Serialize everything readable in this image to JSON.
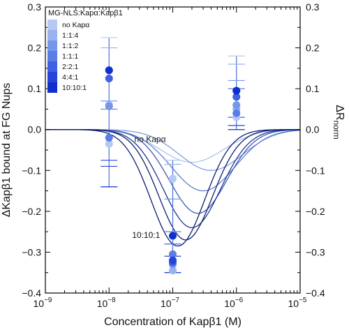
{
  "chart_data": {
    "type": "scatter",
    "title": "",
    "xlabel": "Concentration of Kapβ1 (M)",
    "ylabel_left": "ΔKapβ1 bound at FG Nups",
    "ylabel_right": "ΔR",
    "ylabel_right_sub": "norm",
    "xscale": "log",
    "xlim": [
      1e-09,
      1e-05
    ],
    "ylim": [
      -0.4,
      0.3
    ],
    "x_tick_exponents": [
      "−9",
      "−8",
      "−7",
      "−6",
      "−5"
    ],
    "x_tick_base": "10",
    "y_ticks": [
      "0.3",
      "0.2",
      "0.1",
      "0.0",
      "−0.1",
      "−0.2",
      "−0.3",
      "−0.4"
    ],
    "y_tick_values": [
      0.3,
      0.2,
      0.1,
      0.0,
      -0.1,
      -0.2,
      -0.3,
      -0.4
    ],
    "grid": false,
    "legend": {
      "title": "MG-NLS:Kapα:Kapβ1",
      "placement": "top-left",
      "entries": [
        "no  Kapα",
        "1:1:4",
        "1:1:2",
        "1:1:1",
        "2:2:1",
        "4:4:1",
        "10:10:1"
      ]
    },
    "colors": [
      "#b7c8f2",
      "#98b3ee",
      "#7497ea",
      "#5a7ee6",
      "#3d61e2",
      "#2645d8",
      "#1030cc"
    ],
    "curve_colors": [
      "#adc2ee",
      "#7e9edc",
      "#5d7fcc",
      "#3c5bb5",
      "#1f3590",
      "#0e1c6e"
    ],
    "annotations": [
      {
        "text": "no  Kapα",
        "x": 2.5e-08,
        "y": -0.03
      },
      {
        "text": "10:10:1",
        "x": 2.3e-08,
        "y": -0.265
      }
    ],
    "series": [
      {
        "name": "no  Kapα",
        "points": [
          {
            "x": 1e-08,
            "y": -0.035
          },
          {
            "x": 1e-07,
            "y": -0.12
          },
          {
            "x": 1e-06,
            "y": 0.03
          }
        ]
      },
      {
        "name": "1:1:4",
        "points": [
          {
            "x": 1e-08,
            "y": 0.06
          },
          {
            "x": 1e-07,
            "y": -0.345
          },
          {
            "x": 1e-06,
            "y": 0.05
          }
        ]
      },
      {
        "name": "1:1:2",
        "points": [
          {
            "x": 1e-08,
            "y": 0.057
          },
          {
            "x": 1e-07,
            "y": -0.33
          },
          {
            "x": 1e-06,
            "y": 0.06
          }
        ]
      },
      {
        "name": "1:1:1",
        "points": [
          {
            "x": 1e-08,
            "y": -0.02
          },
          {
            "x": 1e-07,
            "y": -0.305
          },
          {
            "x": 1e-06,
            "y": 0.04
          }
        ]
      },
      {
        "name": "2:2:1",
        "points": [
          {
            "x": 1e-08,
            "y": 0.125
          },
          {
            "x": 1e-07,
            "y": -0.325
          },
          {
            "x": 1e-06,
            "y": 0.08
          }
        ]
      },
      {
        "name": "4:4:1",
        "points": [
          {
            "x": 1e-08,
            "y": 0.145
          },
          {
            "x": 1e-07,
            "y": -0.32
          },
          {
            "x": 1e-06,
            "y": 0.095
          }
        ]
      },
      {
        "name": "10:10:1",
        "points": [
          {
            "x": 1e-08,
            "y": 0.145
          },
          {
            "x": 1e-07,
            "y": -0.26
          },
          {
            "x": 1e-06,
            "y": 0.095
          }
        ]
      }
    ],
    "error_bars": [
      {
        "x": 1e-08,
        "values": [
          0.225,
          0.2,
          0.07,
          0.05,
          -0.075,
          -0.09,
          -0.14
        ]
      },
      {
        "x": 1e-07,
        "values": [
          -0.075,
          -0.085,
          -0.17,
          -0.25,
          -0.28,
          -0.31,
          -0.35
        ]
      },
      {
        "x": 1e-06,
        "values": [
          0.18,
          0.16,
          0.12,
          0.1,
          0.03,
          0.01,
          0.0
        ]
      }
    ],
    "fit_curves": [
      {
        "amplitude": -0.08,
        "center": 2e-07,
        "width": 0.5
      },
      {
        "amplitude": -0.1,
        "center": 4e-07,
        "width": 0.5
      },
      {
        "amplitude": -0.15,
        "center": 3e-07,
        "width": 0.5
      },
      {
        "amplitude": -0.205,
        "center": 2.5e-07,
        "width": 0.45
      },
      {
        "amplitude": -0.24,
        "center": 2e-07,
        "width": 0.45
      },
      {
        "amplitude": -0.27,
        "center": 1.6e-07,
        "width": 0.42
      },
      {
        "amplitude": -0.285,
        "center": 1.2e-07,
        "width": 0.42
      }
    ]
  }
}
